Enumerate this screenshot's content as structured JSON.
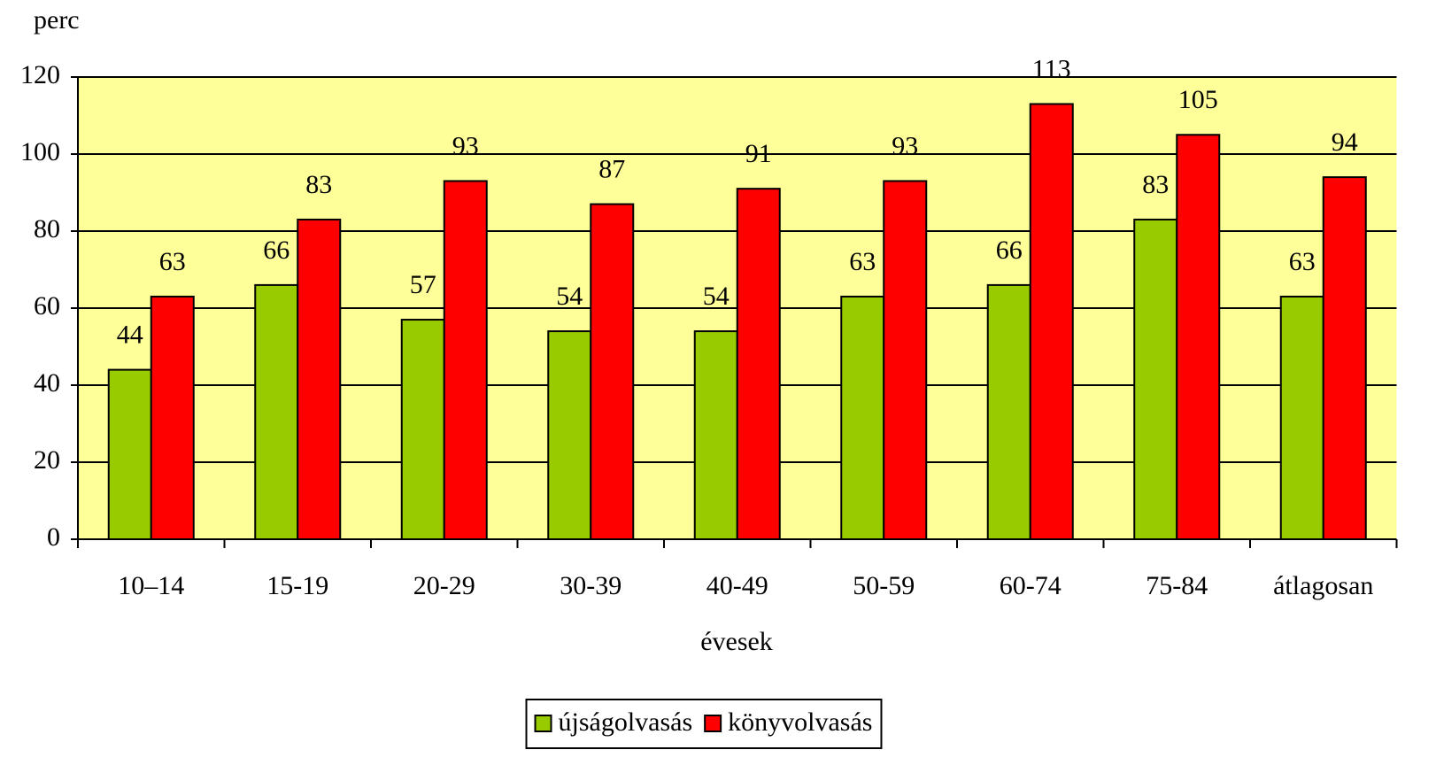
{
  "chart_data": {
    "type": "bar",
    "y_label": "perc",
    "x_label": "évesek",
    "categories": [
      "10–14",
      "15-19",
      "20-29",
      "30-39",
      "40-49",
      "50-59",
      "60-74",
      "75-84",
      "átlagosan"
    ],
    "series": [
      {
        "name": "újságolvasás",
        "color": "#99cc00",
        "values": [
          44,
          66,
          57,
          54,
          54,
          63,
          66,
          83,
          63
        ]
      },
      {
        "name": "könyvolvasás",
        "color": "#ff0000",
        "values": [
          63,
          83,
          93,
          87,
          91,
          93,
          113,
          105,
          94
        ]
      }
    ],
    "ylim": [
      0,
      120
    ],
    "yticks": [
      0,
      20,
      40,
      60,
      80,
      100,
      120
    ],
    "grid": true,
    "legend": "bottom",
    "background": "#ffff99"
  }
}
